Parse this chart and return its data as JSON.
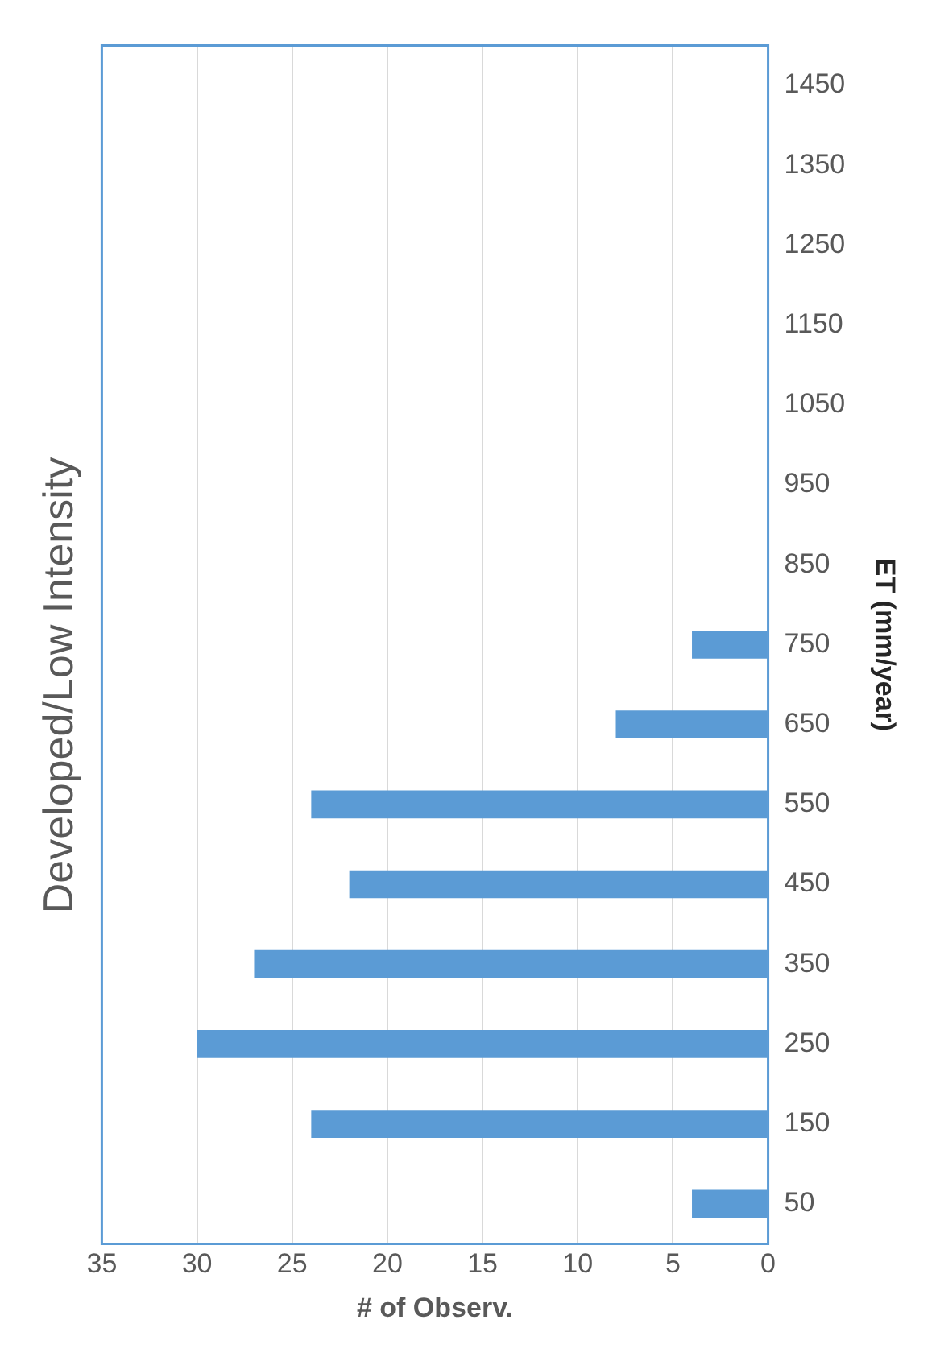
{
  "chart_data": {
    "type": "bar",
    "orientation": "horizontal",
    "title": "Developed/Low Intensity",
    "xlabel": "# of Observ.",
    "ylabel": "ET (mm/year)",
    "categories": [
      "1450",
      "1350",
      "1250",
      "1150",
      "1050",
      "950",
      "850",
      "750",
      "650",
      "550",
      "450",
      "350",
      "250",
      "150",
      "50"
    ],
    "values": [
      0,
      0,
      0,
      0,
      0,
      0,
      0,
      4,
      8,
      24,
      22,
      27,
      30,
      24,
      4
    ],
    "color": "#5b9bd5",
    "xlim": [
      35,
      0
    ],
    "xticks": [
      0,
      5,
      10,
      15,
      20,
      25,
      30,
      35
    ],
    "grid": "x",
    "legend": false
  }
}
